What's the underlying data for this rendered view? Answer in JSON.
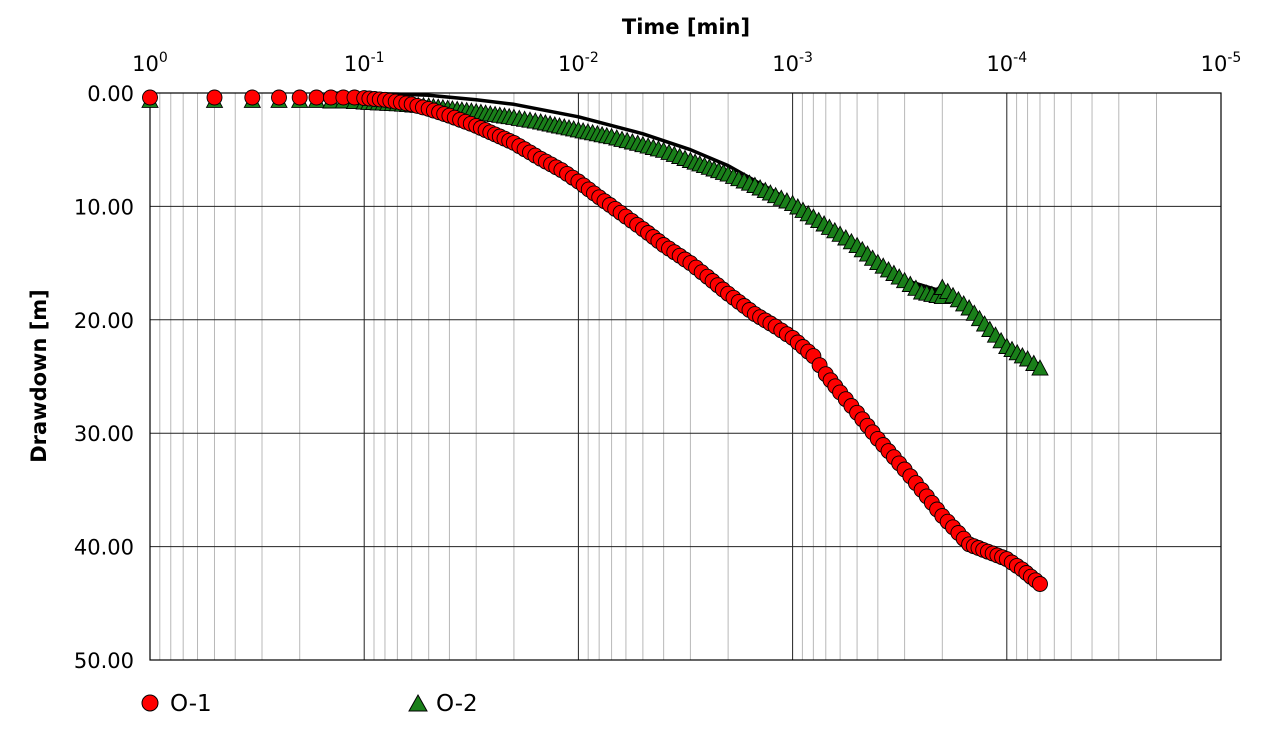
{
  "chart_data": {
    "type": "scatter",
    "title": "",
    "xlabel": "Time [min]",
    "ylabel": "Drawdown [m]",
    "x_axis": {
      "scale": "log",
      "reversed": true,
      "position": "top",
      "range": [
        1,
        1e-05
      ]
    },
    "y_axis": {
      "scale": "linear",
      "reversed": true,
      "range": [
        0,
        50
      ]
    },
    "grid": true,
    "x_ticks": [
      {
        "value": 1,
        "base": "10",
        "exp": "0"
      },
      {
        "value": 0.1,
        "base": "10",
        "exp": "-1"
      },
      {
        "value": 0.01,
        "base": "10",
        "exp": "-2"
      },
      {
        "value": 0.001,
        "base": "10",
        "exp": "-3"
      },
      {
        "value": 0.0001,
        "base": "10",
        "exp": "-4"
      },
      {
        "value": 1e-05,
        "base": "10",
        "exp": "-5"
      }
    ],
    "y_ticks": [
      {
        "value": 0,
        "label": "0.00"
      },
      {
        "value": 10,
        "label": "10.00"
      },
      {
        "value": 20,
        "label": "20.00"
      },
      {
        "value": 30,
        "label": "30.00"
      },
      {
        "value": 40,
        "label": "40.00"
      },
      {
        "value": 50,
        "label": "50.00"
      }
    ],
    "legend": {
      "placement": "bottom-left"
    },
    "series": [
      {
        "name": "O-1",
        "marker": "circle",
        "color": "#ff0000",
        "points": [
          [
            1.0,
            0.4
          ],
          [
            0.5,
            0.4
          ],
          [
            0.333,
            0.4
          ],
          [
            0.25,
            0.4
          ],
          [
            0.2,
            0.4
          ],
          [
            0.167,
            0.4
          ],
          [
            0.143,
            0.4
          ],
          [
            0.125,
            0.4
          ],
          [
            0.111,
            0.4
          ],
          [
            0.1,
            0.45
          ],
          [
            0.08,
            0.6
          ],
          [
            0.06,
            1.0
          ],
          [
            0.05,
            1.4
          ],
          [
            0.04,
            2.0
          ],
          [
            0.03,
            2.9
          ],
          [
            0.02,
            4.4
          ],
          [
            0.015,
            5.8
          ],
          [
            0.012,
            6.8
          ],
          [
            0.01,
            7.8
          ],
          [
            0.008,
            9.2
          ],
          [
            0.006,
            10.9
          ],
          [
            0.005,
            12.0
          ],
          [
            0.004,
            13.4
          ],
          [
            0.003,
            15.0
          ],
          [
            0.0025,
            16.2
          ],
          [
            0.002,
            17.7
          ],
          [
            0.0015,
            19.5
          ],
          [
            0.0012,
            20.6
          ],
          [
            0.001,
            21.6
          ],
          [
            0.0008,
            23.2
          ],
          [
            0.0007,
            24.8
          ],
          [
            0.0006,
            26.4
          ],
          [
            0.0005,
            28.2
          ],
          [
            0.0004,
            30.5
          ],
          [
            0.0003,
            33.2
          ],
          [
            0.00025,
            35.0
          ],
          [
            0.0002,
            37.3
          ],
          [
            0.00015,
            39.8
          ],
          [
            0.0001,
            41.1
          ],
          [
            8.5e-05,
            42.0
          ],
          [
            7e-05,
            43.3
          ]
        ]
      },
      {
        "name": "O-2",
        "marker": "triangle",
        "color": "#1a801a",
        "points": [
          [
            1.0,
            0.7
          ],
          [
            0.5,
            0.7
          ],
          [
            0.333,
            0.7
          ],
          [
            0.25,
            0.7
          ],
          [
            0.2,
            0.7
          ],
          [
            0.167,
            0.7
          ],
          [
            0.143,
            0.75
          ],
          [
            0.125,
            0.75
          ],
          [
            0.111,
            0.8
          ],
          [
            0.1,
            0.85
          ],
          [
            0.07,
            1.0
          ],
          [
            0.05,
            1.2
          ],
          [
            0.03,
            1.7
          ],
          [
            0.02,
            2.2
          ],
          [
            0.015,
            2.6
          ],
          [
            0.01,
            3.3
          ],
          [
            0.007,
            3.9
          ],
          [
            0.005,
            4.6
          ],
          [
            0.004,
            5.1
          ],
          [
            0.003,
            6.0
          ],
          [
            0.002,
            7.2
          ],
          [
            0.0015,
            8.2
          ],
          [
            0.0012,
            9.1
          ],
          [
            0.001,
            9.8
          ],
          [
            0.0008,
            11.0
          ],
          [
            0.0006,
            12.5
          ],
          [
            0.0005,
            13.5
          ],
          [
            0.0004,
            15.0
          ],
          [
            0.0003,
            16.6
          ],
          [
            0.00025,
            17.6
          ],
          [
            0.0002,
            18.0
          ],
          [
            0.0002,
            17.2
          ],
          [
            0.00015,
            19.0
          ],
          [
            0.00012,
            20.9
          ],
          [
            0.0001,
            22.4
          ],
          [
            8e-05,
            23.5
          ],
          [
            7e-05,
            24.3
          ]
        ]
      }
    ],
    "fit_curves": [
      {
        "for": "O-1",
        "color": "#000000",
        "points": [
          [
            0.1,
            0.55
          ],
          [
            0.07,
            0.8
          ],
          [
            0.05,
            1.4
          ],
          [
            0.03,
            2.9
          ],
          [
            0.02,
            4.4
          ],
          [
            0.01,
            7.8
          ],
          [
            0.005,
            12.0
          ],
          [
            0.003,
            15.0
          ],
          [
            0.002,
            17.7
          ],
          [
            0.001,
            21.6
          ],
          [
            0.0007,
            24.8
          ],
          [
            0.0005,
            28.2
          ],
          [
            0.0003,
            33.2
          ],
          [
            0.0002,
            37.3
          ],
          [
            0.00015,
            39.8
          ],
          [
            0.0001,
            41.1
          ],
          [
            7e-05,
            43.0
          ]
        ]
      },
      {
        "for": "O-2",
        "color": "#000000",
        "points": [
          [
            0.15,
            0.0
          ],
          [
            0.1,
            0.05
          ],
          [
            0.07,
            0.1
          ],
          [
            0.05,
            0.2
          ],
          [
            0.03,
            0.6
          ],
          [
            0.02,
            1.0
          ],
          [
            0.01,
            2.1
          ],
          [
            0.005,
            3.6
          ],
          [
            0.003,
            5.0
          ],
          [
            0.002,
            6.4
          ],
          [
            0.001,
            9.6
          ],
          [
            0.0007,
            11.6
          ],
          [
            0.0005,
            13.4
          ],
          [
            0.0003,
            16.5
          ],
          [
            0.0002,
            17.5
          ],
          [
            0.00015,
            19.0
          ],
          [
            0.0001,
            22.3
          ],
          [
            7e-05,
            24.0
          ]
        ]
      }
    ]
  }
}
